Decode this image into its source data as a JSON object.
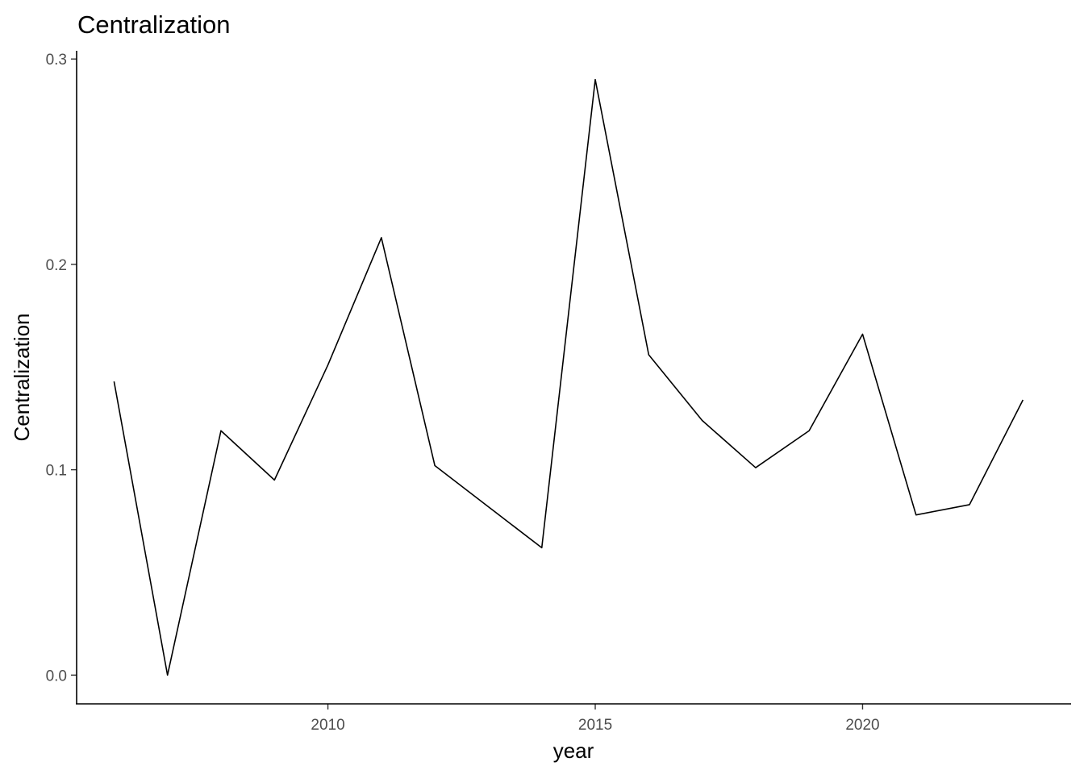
{
  "chart_data": {
    "type": "line",
    "title": "Centralization",
    "xlabel": "year",
    "ylabel": "Centralization",
    "xlim": [
      2005.3,
      2023.9
    ],
    "ylim": [
      -0.014,
      0.304
    ],
    "x_ticks": [
      2010,
      2015,
      2020
    ],
    "y_ticks": [
      0.0,
      0.1,
      0.2,
      0.3
    ],
    "y_tick_labels": [
      "0.0",
      "0.1",
      "0.2",
      "0.3"
    ],
    "x_tick_labels": [
      "2010",
      "2015",
      "2020"
    ],
    "grid": false,
    "legend": "none",
    "line_color": "#000000",
    "x": [
      2006,
      2007,
      2008,
      2009,
      2010,
      2011,
      2012,
      2013,
      2014,
      2015,
      2016,
      2017,
      2018,
      2019,
      2020,
      2021,
      2022,
      2023
    ],
    "series": [
      {
        "values": [
          0.143,
          0.0,
          0.119,
          0.095,
          0.151,
          0.213,
          0.102,
          0.082,
          0.062,
          0.29,
          0.156,
          0.124,
          0.101,
          0.119,
          0.166,
          0.078,
          0.083,
          0.134
        ]
      }
    ]
  }
}
